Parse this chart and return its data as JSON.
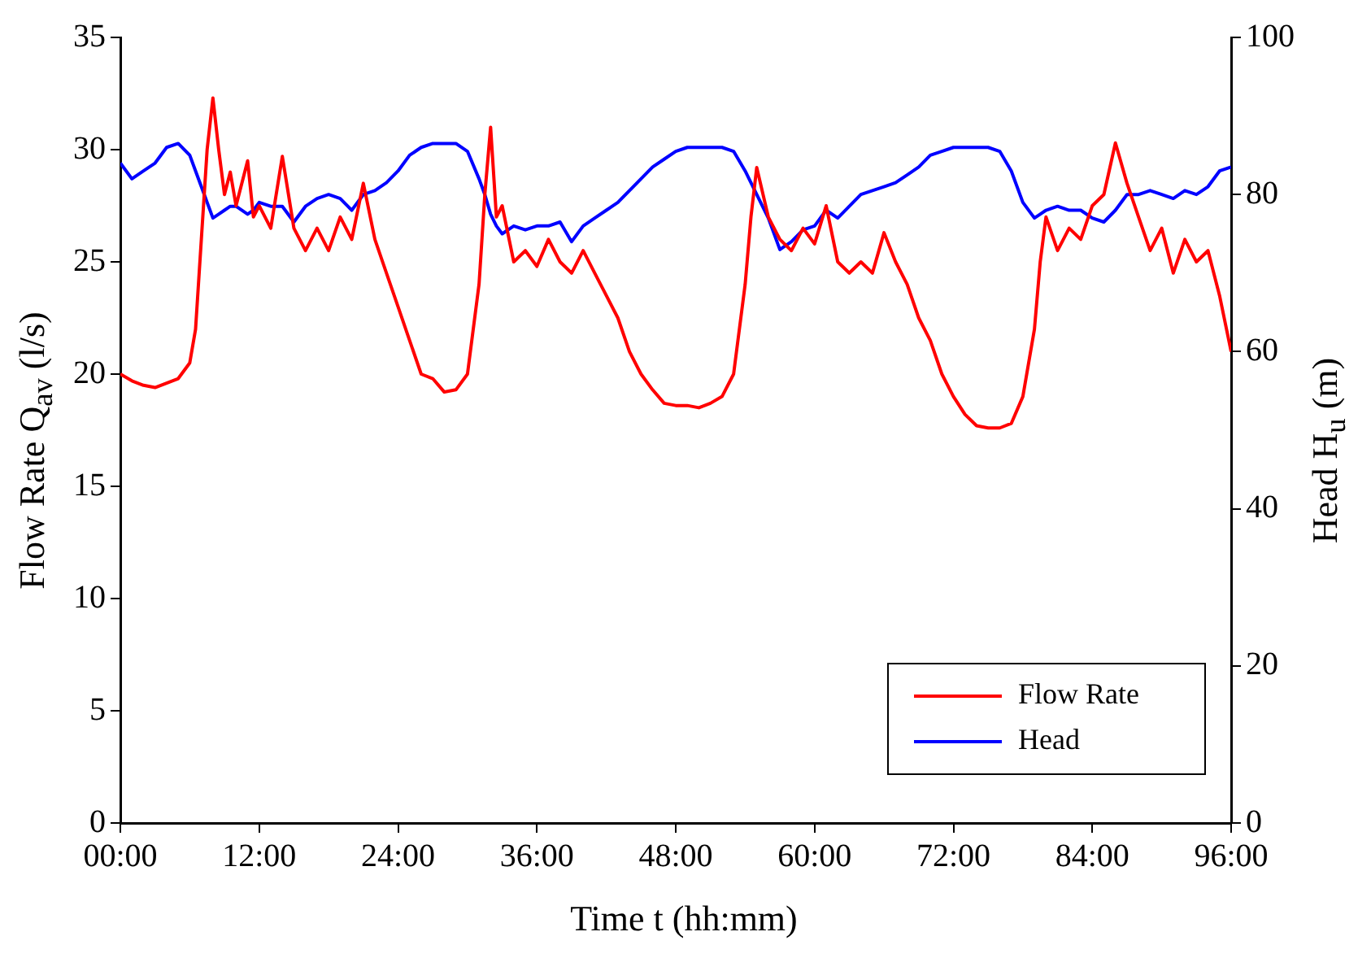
{
  "chart_data": {
    "type": "line",
    "xlabel": "Time t (hh:mm)",
    "ylabel": "Flow Rate Q$_{av}$ (l/s)",
    "y2label": "Head H$_{u}$ (m)",
    "x": [
      0,
      1,
      2,
      3,
      4,
      5,
      6,
      6.5,
      7,
      7.5,
      8,
      8.5,
      9,
      9.5,
      10,
      11,
      11.5,
      12,
      13,
      14,
      15,
      16,
      17,
      18,
      19,
      20,
      21,
      22,
      23,
      24,
      25,
      26,
      27,
      28,
      29,
      30,
      31,
      31.5,
      32,
      32.5,
      33,
      34,
      35,
      36,
      37,
      38,
      39,
      40,
      41,
      42,
      43,
      44,
      45,
      46,
      47,
      48,
      49,
      50,
      51,
      52,
      53,
      54,
      54.5,
      55,
      56,
      57,
      58,
      59,
      60,
      61,
      62,
      63,
      64,
      65,
      66,
      67,
      68,
      69,
      70,
      71,
      72,
      73,
      74,
      75,
      76,
      77,
      78,
      79,
      79.5,
      80,
      81,
      82,
      83,
      84,
      85,
      86,
      87,
      88,
      89,
      90,
      91,
      92,
      93,
      94,
      95,
      96
    ],
    "series": [
      {
        "name": "Flow Rate",
        "color": "#ff0000",
        "values": [
          20,
          19.7,
          19.5,
          19.4,
          19.6,
          19.8,
          20.5,
          22,
          26,
          30,
          32.3,
          30,
          28,
          29,
          27.5,
          29.5,
          27,
          27.5,
          26.5,
          29.7,
          26.5,
          25.5,
          26.5,
          25.5,
          27,
          26,
          28.5,
          26,
          24.5,
          23,
          21.5,
          20,
          19.8,
          19.2,
          19.3,
          20,
          24,
          28,
          31,
          27,
          27.5,
          25,
          25.5,
          24.8,
          26,
          25,
          24.5,
          25.5,
          24.5,
          23.5,
          22.5,
          21,
          20,
          19.3,
          18.7,
          18.6,
          18.6,
          18.5,
          18.7,
          19,
          20,
          24,
          27,
          29.2,
          27,
          26,
          25.5,
          26.5,
          25.8,
          27.5,
          25,
          24.5,
          25,
          24.5,
          26.3,
          25,
          24,
          22.5,
          21.5,
          20,
          19,
          18.2,
          17.7,
          17.6,
          17.6,
          17.8,
          19,
          22,
          25,
          27,
          25.5,
          26.5,
          26,
          27.5,
          28,
          30.3,
          28.5,
          27,
          25.5,
          26.5,
          24.5,
          26,
          25,
          25.5,
          23.5,
          21
        ]
      },
      {
        "name": "Head",
        "color": "#0000ff",
        "axis": "y2",
        "values": [
          84,
          82,
          83,
          84,
          86,
          86.5,
          85,
          83,
          81,
          79,
          77,
          77.5,
          78,
          78.5,
          78.5,
          77.5,
          78,
          79,
          78.5,
          78.5,
          76.5,
          78.5,
          79.5,
          80,
          79.5,
          78,
          80,
          80.5,
          81.5,
          83,
          85,
          86,
          86.5,
          86.5,
          86.5,
          85.5,
          82,
          80,
          77.5,
          76,
          75,
          76,
          75.5,
          76,
          76,
          76.5,
          74,
          76,
          77,
          78,
          79,
          80.5,
          82,
          83.5,
          84.5,
          85.5,
          86,
          86,
          86,
          86,
          85.5,
          83,
          81.5,
          80,
          77,
          73,
          74,
          75.5,
          76,
          78,
          77,
          78.5,
          80,
          80.5,
          81,
          81.5,
          82.5,
          83.5,
          85,
          85.5,
          86,
          86,
          86,
          86,
          85.5,
          83,
          79,
          77,
          77.5,
          78,
          78.5,
          78,
          78,
          77,
          76.5,
          78,
          80,
          80,
          80.5,
          80,
          79.5,
          80.5,
          80,
          81,
          83,
          83.5
        ]
      }
    ],
    "xlim": [
      0,
      96
    ],
    "xticks": [
      {
        "value": 0,
        "label": "00:00"
      },
      {
        "value": 12,
        "label": "12:00"
      },
      {
        "value": 24,
        "label": "24:00"
      },
      {
        "value": 36,
        "label": "36:00"
      },
      {
        "value": 48,
        "label": "48:00"
      },
      {
        "value": 60,
        "label": "60:00"
      },
      {
        "value": 72,
        "label": "72:00"
      },
      {
        "value": 84,
        "label": "84:00"
      },
      {
        "value": 96,
        "label": "96:00"
      }
    ],
    "ylim": [
      0,
      35
    ],
    "yticks": [
      0,
      5,
      10,
      15,
      20,
      25,
      30,
      35
    ],
    "y2lim": [
      0,
      100
    ],
    "y2ticks": [
      0,
      20,
      40,
      60,
      80,
      100
    ],
    "legend": "bottom right",
    "grid": false,
    "marker": "none",
    "line_style": "solid"
  }
}
